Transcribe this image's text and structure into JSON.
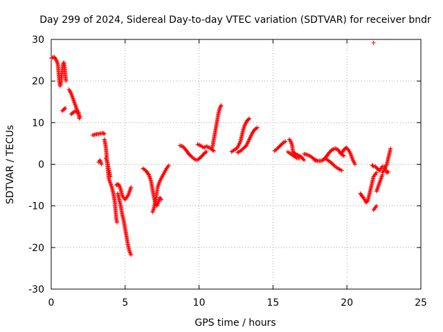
{
  "chart_data": {
    "type": "scatter",
    "title": "Day 299 of 2024, Sidereal Day-to-day VTEC variation (SDTVAR) for receiver bndr",
    "xlabel": "GPS time / hours",
    "ylabel": "SDTVAR / TECUs",
    "xlim": [
      0,
      25
    ],
    "ylim": [
      -30,
      30
    ],
    "xticks": [
      0,
      5,
      10,
      15,
      20,
      25
    ],
    "yticks": [
      -30,
      -20,
      -10,
      0,
      10,
      20,
      30
    ],
    "grid": true,
    "marker": "+",
    "color": "#ff0000",
    "segments": [
      [
        [
          0.0,
          25.5
        ],
        [
          0.2,
          25.8
        ],
        [
          0.35,
          25.0
        ],
        [
          0.45,
          24.0
        ],
        [
          0.5,
          22.0
        ],
        [
          0.55,
          20.0
        ],
        [
          0.6,
          18.8
        ],
        [
          0.65,
          19.5
        ],
        [
          0.7,
          21.0
        ],
        [
          0.75,
          22.5
        ],
        [
          0.8,
          24.0
        ],
        [
          0.85,
          24.5
        ],
        [
          0.9,
          23.5
        ],
        [
          0.95,
          21.5
        ],
        [
          1.0,
          20.0
        ]
      ],
      [
        [
          0.75,
          12.8
        ],
        [
          0.85,
          13.2
        ],
        [
          0.95,
          13.5
        ]
      ],
      [
        [
          1.2,
          18.0
        ],
        [
          1.35,
          17.0
        ],
        [
          1.5,
          15.5
        ],
        [
          1.65,
          14.0
        ],
        [
          1.75,
          13.0
        ],
        [
          1.85,
          12.5
        ],
        [
          1.9,
          11.0
        ],
        [
          1.95,
          11.5
        ]
      ],
      [
        [
          1.35,
          12.0
        ],
        [
          1.5,
          12.5
        ],
        [
          1.65,
          12.8
        ],
        [
          1.8,
          12.3
        ]
      ],
      [
        [
          2.8,
          7.0
        ],
        [
          3.0,
          7.2
        ],
        [
          3.2,
          7.3
        ],
        [
          3.35,
          7.4
        ],
        [
          3.5,
          7.5
        ],
        [
          3.6,
          7.3
        ]
      ],
      [
        [
          3.2,
          0.5
        ],
        [
          3.3,
          1.0
        ],
        [
          3.4,
          0.0
        ]
      ],
      [
        [
          3.6,
          6.0
        ],
        [
          3.7,
          4.0
        ],
        [
          3.75,
          2.0
        ],
        [
          3.8,
          0.0
        ],
        [
          3.85,
          -2.0
        ],
        [
          3.9,
          -3.5
        ],
        [
          4.0,
          -4.5
        ],
        [
          4.1,
          -5.5
        ],
        [
          4.2,
          -7.0
        ],
        [
          4.3,
          -9.0
        ],
        [
          4.35,
          -11.0
        ],
        [
          4.4,
          -13.0
        ],
        [
          4.45,
          -14.0
        ]
      ],
      [
        [
          3.7,
          1.5
        ],
        [
          3.8,
          0.5
        ],
        [
          3.9,
          -1.5
        ],
        [
          4.0,
          -3.0
        ]
      ],
      [
        [
          4.4,
          -5.0
        ],
        [
          4.5,
          -4.8
        ],
        [
          4.6,
          -5.0
        ],
        [
          4.7,
          -6.0
        ],
        [
          4.8,
          -7.5
        ],
        [
          4.9,
          -8.0
        ],
        [
          5.0,
          -8.5
        ],
        [
          5.1,
          -8.0
        ],
        [
          5.2,
          -7.5
        ],
        [
          5.3,
          -6.5
        ],
        [
          5.4,
          -5.5
        ]
      ],
      [
        [
          4.5,
          -7.0
        ],
        [
          4.6,
          -8.5
        ],
        [
          4.7,
          -10.0
        ],
        [
          4.8,
          -12.0
        ],
        [
          4.9,
          -13.5
        ],
        [
          5.0,
          -15.5
        ],
        [
          5.1,
          -17.5
        ],
        [
          5.2,
          -19.5
        ],
        [
          5.3,
          -21.0
        ],
        [
          5.4,
          -21.8
        ]
      ],
      [
        [
          6.2,
          -1.0
        ],
        [
          6.4,
          -1.5
        ],
        [
          6.6,
          -2.5
        ],
        [
          6.75,
          -4.0
        ],
        [
          6.85,
          -6.0
        ],
        [
          6.95,
          -8.0
        ],
        [
          7.05,
          -9.5
        ],
        [
          7.15,
          -10.0
        ],
        [
          7.25,
          -9.0
        ],
        [
          7.35,
          -8.0
        ],
        [
          7.45,
          -8.5
        ]
      ],
      [
        [
          6.85,
          -11.5
        ],
        [
          6.95,
          -10.5
        ],
        [
          7.1,
          -8.0
        ],
        [
          7.2,
          -5.5
        ],
        [
          7.35,
          -4.0
        ],
        [
          7.5,
          -3.0
        ],
        [
          7.65,
          -2.0
        ],
        [
          7.8,
          -1.0
        ],
        [
          7.95,
          -0.3
        ]
      ],
      [
        [
          8.7,
          4.5
        ],
        [
          8.9,
          4.3
        ],
        [
          9.1,
          3.5
        ],
        [
          9.3,
          2.5
        ],
        [
          9.5,
          1.8
        ],
        [
          9.7,
          1.2
        ],
        [
          9.85,
          1.0
        ],
        [
          10.0,
          1.3
        ],
        [
          10.2,
          2.0
        ],
        [
          10.4,
          2.8
        ],
        [
          10.5,
          3.0
        ]
      ],
      [
        [
          9.9,
          4.8
        ],
        [
          10.1,
          4.5
        ],
        [
          10.3,
          4.0
        ],
        [
          10.5,
          4.3
        ],
        [
          10.7,
          4.0
        ],
        [
          10.9,
          3.5
        ],
        [
          11.0,
          3.2
        ]
      ],
      [
        [
          10.9,
          4.0
        ],
        [
          11.0,
          6.0
        ],
        [
          11.1,
          8.0
        ],
        [
          11.2,
          10.0
        ],
        [
          11.3,
          12.0
        ],
        [
          11.4,
          13.5
        ],
        [
          11.5,
          14.2
        ]
      ],
      [
        [
          12.2,
          3.0
        ],
        [
          12.4,
          3.5
        ],
        [
          12.6,
          4.0
        ],
        [
          12.8,
          5.5
        ],
        [
          12.9,
          7.0
        ],
        [
          13.0,
          8.5
        ],
        [
          13.1,
          9.5
        ],
        [
          13.25,
          10.5
        ],
        [
          13.4,
          11.0
        ]
      ],
      [
        [
          12.6,
          2.8
        ],
        [
          12.8,
          3.2
        ],
        [
          13.0,
          3.8
        ],
        [
          13.2,
          4.5
        ],
        [
          13.4,
          6.0
        ],
        [
          13.6,
          7.5
        ],
        [
          13.8,
          8.5
        ],
        [
          13.95,
          8.8
        ]
      ],
      [
        [
          15.1,
          3.2
        ],
        [
          15.3,
          3.8
        ],
        [
          15.5,
          4.5
        ],
        [
          15.7,
          5.2
        ],
        [
          15.85,
          5.5
        ]
      ],
      [
        [
          16.1,
          6.0
        ],
        [
          16.2,
          5.5
        ],
        [
          16.3,
          4.5
        ],
        [
          16.35,
          3.0
        ],
        [
          16.5,
          2.5
        ],
        [
          16.7,
          2.2
        ],
        [
          16.9,
          1.8
        ],
        [
          17.1,
          1.0
        ]
      ],
      [
        [
          16.0,
          3.0
        ],
        [
          16.2,
          2.5
        ],
        [
          16.4,
          2.0
        ],
        [
          16.6,
          1.5
        ],
        [
          16.8,
          1.5
        ]
      ],
      [
        [
          17.1,
          2.5
        ],
        [
          17.3,
          2.3
        ],
        [
          17.5,
          2.0
        ],
        [
          17.7,
          1.5
        ],
        [
          17.9,
          1.0
        ]
      ],
      [
        [
          17.8,
          1.0
        ],
        [
          18.0,
          0.8
        ],
        [
          18.2,
          0.8
        ],
        [
          18.4,
          1.0
        ],
        [
          18.6,
          1.8
        ],
        [
          18.8,
          2.8
        ],
        [
          19.0,
          3.5
        ],
        [
          19.2,
          3.8
        ],
        [
          19.4,
          3.5
        ],
        [
          19.6,
          2.5
        ],
        [
          19.8,
          2.0
        ]
      ],
      [
        [
          18.5,
          1.5
        ],
        [
          18.7,
          1.0
        ],
        [
          18.9,
          0.5
        ],
        [
          19.1,
          -0.2
        ],
        [
          19.3,
          -0.8
        ],
        [
          19.5,
          -1.2
        ],
        [
          19.65,
          -1.5
        ]
      ],
      [
        [
          19.6,
          2.5
        ],
        [
          19.8,
          3.5
        ],
        [
          19.95,
          4.0
        ],
        [
          20.1,
          3.5
        ],
        [
          20.25,
          2.5
        ],
        [
          20.4,
          1.0
        ],
        [
          20.55,
          0.0
        ]
      ],
      [
        [
          20.9,
          -7.0
        ],
        [
          21.1,
          -8.0
        ],
        [
          21.2,
          -8.5
        ],
        [
          21.3,
          -9.2
        ],
        [
          21.4,
          -8.8
        ],
        [
          21.5,
          -7.5
        ],
        [
          21.6,
          -6.0
        ],
        [
          21.7,
          -4.5
        ],
        [
          21.8,
          -3.0
        ],
        [
          21.9,
          -2.5
        ],
        [
          22.0,
          -2.0
        ]
      ],
      [
        [
          21.7,
          -0.2
        ],
        [
          21.8,
          -0.5
        ],
        [
          21.9,
          -0.5
        ],
        [
          22.0,
          -0.8
        ],
        [
          22.1,
          -1.2
        ],
        [
          22.2,
          -1.5
        ],
        [
          22.3,
          -1.0
        ],
        [
          22.4,
          -0.5
        ]
      ],
      [
        [
          21.8,
          -11.0
        ],
        [
          21.9,
          -10.5
        ],
        [
          22.0,
          -10.0
        ]
      ],
      [
        [
          22.0,
          -6.5
        ],
        [
          22.1,
          -5.5
        ],
        [
          22.2,
          -4.5
        ],
        [
          22.3,
          -3.5
        ],
        [
          22.4,
          -2.5
        ]
      ],
      [
        [
          22.4,
          -2.0
        ],
        [
          22.5,
          -1.5
        ],
        [
          22.6,
          -0.8
        ],
        [
          22.7,
          0.0
        ],
        [
          22.8,
          1.5
        ],
        [
          22.9,
          3.0
        ],
        [
          22.95,
          3.8
        ]
      ],
      [
        [
          22.5,
          -0.5
        ],
        [
          22.6,
          -1.2
        ],
        [
          22.7,
          -2.0
        ],
        [
          22.8,
          -1.8
        ]
      ],
      [
        [
          21.8,
          29.2
        ]
      ]
    ]
  }
}
